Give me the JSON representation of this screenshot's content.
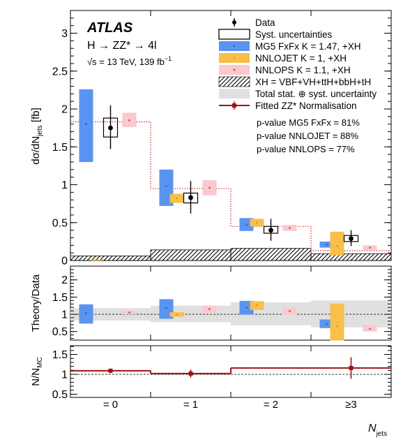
{
  "figure": {
    "experiment": "ATLAS",
    "process": "H → ZZ* → 4l",
    "energy": "√s = 13 TeV, 139 fb",
    "lumi_exp": "−1",
    "ylabel_top": "dσ/dN",
    "ylabel_top_sub": "jets",
    "ylabel_top_unit": " [fb]",
    "ylabel_mid": "Theory/Data",
    "ylabel_bot": "N/N",
    "ylabel_bot_sub": "MC",
    "xlabel": "N",
    "xlabel_sub": "jets",
    "pvalues": [
      "p-value MG5 FxFx = 81%",
      "p-value NNLOJET = 88%",
      "p-value NNLOPS = 77%"
    ],
    "legend": [
      {
        "label": "Data",
        "kind": "data"
      },
      {
        "label": "Syst. uncertainties",
        "kind": "syst"
      },
      {
        "label": "MG5 FxFx K = 1.47, +XH",
        "kind": "mg5"
      },
      {
        "label": "NNLOJET K = 1, +XH",
        "kind": "nnlojet"
      },
      {
        "label": "NNLOPS K = 1.1, +XH",
        "kind": "nnlops"
      },
      {
        "label": "XH = VBF+VH+ttH+bbH+tH",
        "kind": "xh"
      },
      {
        "label": "Total stat. ⊕ syst. uncertainty",
        "kind": "total"
      },
      {
        "label": "Fitted ZZ* Normalisation",
        "kind": "fit"
      }
    ]
  },
  "colors": {
    "mg5": "#5a94f0",
    "mg5_point": "#2a5fc0",
    "nnlojet": "#f8bf4a",
    "nnlojet_point": "#e09a10",
    "nnlops": "#f9c9ce",
    "nnlops_point": "#e83a4a",
    "data": "#000000",
    "fit": "#a01010",
    "band": "#e0e0e0",
    "dotted": "#dd2222"
  },
  "chart_data": [
    {
      "type": "bar",
      "panel": "cross-section",
      "categories": [
        "= 0",
        "= 1",
        "= 2",
        "≥3"
      ],
      "ylim": [
        0,
        3.3
      ],
      "yticks": [
        0,
        0.5,
        1,
        1.5,
        2,
        2.5,
        3
      ],
      "ytick_labels": [
        "0",
        "0.5",
        "1",
        "1.5",
        "2",
        "2.5",
        "3"
      ],
      "data": {
        "values": [
          1.75,
          0.83,
          0.4,
          0.29
        ],
        "err_lo": [
          0.28,
          0.21,
          0.14,
          0.1
        ],
        "err_hi": [
          0.3,
          0.22,
          0.15,
          0.11
        ],
        "syst_lo": [
          1.63,
          0.76,
          0.36,
          0.25
        ],
        "syst_hi": [
          1.88,
          0.89,
          0.45,
          0.33
        ]
      },
      "mg5": {
        "central": [
          1.8,
          0.98,
          0.47,
          0.21
        ],
        "lo": [
          1.3,
          0.72,
          0.39,
          0.17
        ],
        "hi": [
          2.26,
          1.2,
          0.56,
          0.25
        ]
      },
      "nnlojet": {
        "central": [
          0.0,
          0.82,
          0.5,
          0.19
        ],
        "lo": [
          0.0,
          0.76,
          0.45,
          0.07
        ],
        "hi": [
          0.0,
          0.88,
          0.55,
          0.38
        ]
      },
      "nnlops": {
        "central": [
          1.85,
          0.96,
          0.43,
          0.17
        ],
        "lo": [
          1.76,
          0.86,
          0.39,
          0.14
        ],
        "hi": [
          1.95,
          1.06,
          0.47,
          0.2
        ]
      },
      "xh": [
        0.06,
        0.14,
        0.16,
        0.09
      ],
      "dotted_step": [
        1.83,
        0.95,
        0.45,
        0.13
      ]
    },
    {
      "type": "bar",
      "panel": "theory-over-data",
      "categories": [
        "= 0",
        "= 1",
        "= 2",
        "≥3"
      ],
      "ylim": [
        0.25,
        2.4
      ],
      "yticks": [
        0.5,
        1,
        1.5,
        2
      ],
      "ytick_labels": [
        "0.5",
        "1",
        "1.5",
        "2"
      ],
      "band": {
        "lo": [
          0.82,
          0.77,
          0.68,
          0.62
        ],
        "hi": [
          1.18,
          1.25,
          1.35,
          1.4
        ]
      },
      "mg5": {
        "central": [
          1.03,
          1.18,
          1.2,
          0.72
        ],
        "lo": [
          0.73,
          0.87,
          0.99,
          0.6
        ],
        "hi": [
          1.29,
          1.44,
          1.39,
          0.85
        ]
      },
      "nnlojet": {
        "central": [
          0.0,
          0.99,
          1.27,
          0.65
        ],
        "lo": [
          0.0,
          0.93,
          1.13,
          0.24
        ],
        "hi": [
          0.0,
          1.06,
          1.38,
          1.31
        ]
      },
      "nnlops": {
        "central": [
          1.05,
          1.15,
          1.09,
          0.58
        ],
        "lo": [
          1.0,
          1.04,
          0.99,
          0.5
        ],
        "hi": [
          1.1,
          1.25,
          1.19,
          0.68
        ]
      }
    },
    {
      "type": "line",
      "panel": "zz-normalisation",
      "categories": [
        "= 0",
        "= 1",
        "= 2",
        "≥3"
      ],
      "ylim": [
        0.42,
        1.72
      ],
      "yticks": [
        0.5,
        1,
        1.5
      ],
      "ytick_labels": [
        "0.5",
        "1",
        "1.5"
      ],
      "fit": {
        "values": [
          1.09,
          1.02,
          1.16,
          1.16
        ],
        "err": [
          0.05,
          0.1,
          0.09,
          0.27
        ],
        "point_bins": [
          0,
          1,
          3
        ]
      }
    }
  ]
}
